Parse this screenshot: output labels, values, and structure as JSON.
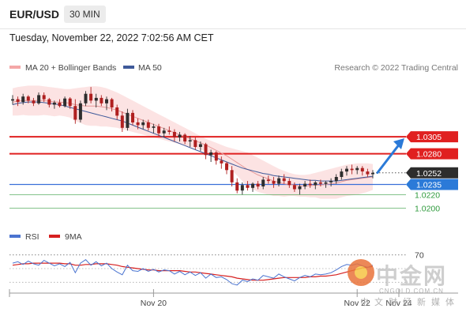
{
  "header": {
    "symbol": "EUR/USD",
    "timeframe": "30 MIN",
    "datetime": "Tuesday, November 22, 2022 7:02:56 AM CET"
  },
  "legend": {
    "bollinger_label": "MA 20 + Bollinger Bands",
    "ma50_label": "MA 50",
    "credit": "Research © 2022 Trading Central"
  },
  "colors": {
    "bollinger": "#f4a7a7",
    "ma50": "#3f5a9a",
    "resistance": "#e02020",
    "support": "#3a6fd8",
    "target": "#2b7ad8",
    "support_green": "#2e9a3c",
    "rsi": "#4b74d0",
    "rsi_ma": "#d62020",
    "candle_up": "#2e2e2e",
    "candle_down": "#b02020"
  },
  "levels": [
    {
      "value": 1.0305,
      "label": "1.0305",
      "style": "red-box",
      "line": "red"
    },
    {
      "value": 1.028,
      "label": "1.0280",
      "style": "red-box",
      "line": "red"
    },
    {
      "value": 1.0252,
      "label": "1.0252",
      "style": "dark-box",
      "line": "dotted"
    },
    {
      "value": 1.0235,
      "label": "1.0235",
      "style": "blue-box",
      "line": "blue"
    },
    {
      "value": 1.022,
      "label": "1.0220",
      "style": "green-text",
      "line": "green"
    },
    {
      "value": 1.02,
      "label": "1.0200",
      "style": "green-text",
      "line": "green"
    }
  ],
  "rsi_legend": {
    "rsi_label": "RSI",
    "ma_label": "9MA"
  },
  "rsi_levels": [
    {
      "value": 70,
      "label": "70"
    }
  ],
  "x_labels": [
    {
      "label": "Nov 20",
      "index": 27
    },
    {
      "label": "Nov 22",
      "index": 66
    },
    {
      "label": "Nov 24",
      "index": 74
    }
  ],
  "watermark": {
    "brand_cn": "中金网",
    "url": "CNGOLD.COM.CN",
    "slogan": "中文财经新媒体"
  },
  "chart_data": {
    "type": "candlestick",
    "title": "EUR/USD",
    "timeframe": "30 MIN",
    "ylim": [
      1.0188,
      1.0392
    ],
    "rsi_ylim": [
      20,
      80
    ],
    "series": [
      {
        "name": "Price",
        "ohlc": [
          [
            1.0358,
            1.0366,
            1.0352,
            1.036
          ],
          [
            1.036,
            1.0364,
            1.035,
            1.0356
          ],
          [
            1.0356,
            1.0368,
            1.0352,
            1.0364
          ],
          [
            1.0364,
            1.0366,
            1.0354,
            1.0358
          ],
          [
            1.0358,
            1.0362,
            1.035,
            1.0354
          ],
          [
            1.0354,
            1.037,
            1.0352,
            1.0366
          ],
          [
            1.0366,
            1.037,
            1.0356,
            1.036
          ],
          [
            1.036,
            1.0362,
            1.0348,
            1.0352
          ],
          [
            1.0352,
            1.0358,
            1.0346,
            1.0355
          ],
          [
            1.0355,
            1.036,
            1.0348,
            1.035
          ],
          [
            1.035,
            1.0364,
            1.0348,
            1.0361
          ],
          [
            1.0361,
            1.0363,
            1.0346,
            1.035
          ],
          [
            1.035,
            1.036,
            1.0324,
            1.033
          ],
          [
            1.033,
            1.0358,
            1.0326,
            1.0354
          ],
          [
            1.0354,
            1.0372,
            1.035,
            1.0368
          ],
          [
            1.0368,
            1.0378,
            1.0354,
            1.0358
          ],
          [
            1.0358,
            1.0368,
            1.0348,
            1.0362
          ],
          [
            1.0362,
            1.0366,
            1.035,
            1.0354
          ],
          [
            1.0354,
            1.0364,
            1.0344,
            1.036
          ],
          [
            1.036,
            1.0362,
            1.0342,
            1.0348
          ],
          [
            1.0348,
            1.0352,
            1.033,
            1.0336
          ],
          [
            1.0336,
            1.0342,
            1.0312,
            1.0318
          ],
          [
            1.0318,
            1.0346,
            1.0314,
            1.034
          ],
          [
            1.034,
            1.0344,
            1.0322,
            1.0326
          ],
          [
            1.0326,
            1.0332,
            1.0316,
            1.0322
          ],
          [
            1.0322,
            1.033,
            1.0316,
            1.0326
          ],
          [
            1.0326,
            1.033,
            1.0314,
            1.0318
          ],
          [
            1.0318,
            1.0324,
            1.031,
            1.032
          ],
          [
            1.032,
            1.0324,
            1.0306,
            1.031
          ],
          [
            1.031,
            1.0318,
            1.0304,
            1.0314
          ],
          [
            1.0314,
            1.032,
            1.0308,
            1.0312
          ],
          [
            1.0312,
            1.0316,
            1.0298,
            1.0304
          ],
          [
            1.0304,
            1.0312,
            1.0298,
            1.0308
          ],
          [
            1.0308,
            1.031,
            1.0294,
            1.0298
          ],
          [
            1.0298,
            1.0306,
            1.029,
            1.03
          ],
          [
            1.03,
            1.0304,
            1.0286,
            1.029
          ],
          [
            1.029,
            1.0298,
            1.0284,
            1.0294
          ],
          [
            1.0294,
            1.0296,
            1.0272,
            1.0278
          ],
          [
            1.0278,
            1.0286,
            1.0268,
            1.0282
          ],
          [
            1.0282,
            1.0284,
            1.0264,
            1.027
          ],
          [
            1.027,
            1.0276,
            1.0258,
            1.0266
          ],
          [
            1.0266,
            1.0268,
            1.025,
            1.0256
          ],
          [
            1.0256,
            1.0262,
            1.0232,
            1.0238
          ],
          [
            1.0238,
            1.0244,
            1.0222,
            1.0226
          ],
          [
            1.0226,
            1.0238,
            1.022,
            1.0234
          ],
          [
            1.0234,
            1.024,
            1.0226,
            1.023
          ],
          [
            1.023,
            1.0238,
            1.0224,
            1.0236
          ],
          [
            1.0236,
            1.024,
            1.0228,
            1.0232
          ],
          [
            1.0232,
            1.0246,
            1.0228,
            1.0242
          ],
          [
            1.0242,
            1.0248,
            1.0236,
            1.024
          ],
          [
            1.024,
            1.0246,
            1.023,
            1.0236
          ],
          [
            1.0236,
            1.0248,
            1.0232,
            1.0244
          ],
          [
            1.0244,
            1.025,
            1.0236,
            1.024
          ],
          [
            1.024,
            1.0244,
            1.023,
            1.0234
          ],
          [
            1.0234,
            1.0238,
            1.0224,
            1.0228
          ],
          [
            1.0228,
            1.0236,
            1.022,
            1.0232
          ],
          [
            1.0232,
            1.024,
            1.0228,
            1.0236
          ],
          [
            1.0236,
            1.0242,
            1.023,
            1.0234
          ],
          [
            1.0234,
            1.024,
            1.0228,
            1.0238
          ],
          [
            1.0238,
            1.0242,
            1.0232,
            1.0236
          ],
          [
            1.0236,
            1.024,
            1.023,
            1.0238
          ],
          [
            1.0238,
            1.0244,
            1.0232,
            1.024
          ],
          [
            1.024,
            1.025,
            1.0236,
            1.0246
          ],
          [
            1.0246,
            1.0258,
            1.0242,
            1.0254
          ],
          [
            1.0254,
            1.0262,
            1.0248,
            1.0258
          ],
          [
            1.0258,
            1.0264,
            1.025,
            1.0256
          ],
          [
            1.0256,
            1.0262,
            1.025,
            1.0259
          ],
          [
            1.0259,
            1.0262,
            1.0248,
            1.0254
          ],
          [
            1.0254,
            1.0258,
            1.0246,
            1.025
          ],
          [
            1.025,
            1.0256,
            1.0244,
            1.0252
          ]
        ]
      },
      {
        "name": "MA 50",
        "values": [
          1.0352,
          1.0354,
          1.0355,
          1.0356,
          1.0356,
          1.0356,
          1.0355,
          1.0354,
          1.0353,
          1.0352,
          1.035,
          1.0348,
          1.0346,
          1.0344,
          1.0342,
          1.034,
          1.0338,
          1.0336,
          1.0334,
          1.0332,
          1.033,
          1.0328,
          1.0325,
          1.0322,
          1.0319,
          1.0316,
          1.0313,
          1.031,
          1.0307,
          1.0304,
          1.0301,
          1.0298,
          1.0295,
          1.0292,
          1.0289,
          1.0286,
          1.0283,
          1.028,
          1.0277,
          1.0274,
          1.0271,
          1.0268,
          1.0265,
          1.0262,
          1.0259,
          1.0257,
          1.0255,
          1.0253,
          1.0251,
          1.025,
          1.0248,
          1.0247,
          1.0246,
          1.0245,
          1.0244,
          1.0243,
          1.0242,
          1.0241,
          1.0241,
          1.024,
          1.024,
          1.024,
          1.024,
          1.0241,
          1.0242,
          1.0243,
          1.0244,
          1.0245,
          1.0246,
          1.0247
        ]
      },
      {
        "name": "MA 20",
        "values": [
          1.0356,
          1.0357,
          1.0358,
          1.0358,
          1.0358,
          1.0358,
          1.0358,
          1.0357,
          1.0356,
          1.0356,
          1.0355,
          1.0354,
          1.0352,
          1.0351,
          1.035,
          1.035,
          1.035,
          1.0349,
          1.0348,
          1.0346,
          1.0344,
          1.0341,
          1.0338,
          1.0335,
          1.0332,
          1.0329,
          1.0326,
          1.0323,
          1.032,
          1.0317,
          1.0314,
          1.0311,
          1.0308,
          1.0305,
          1.0302,
          1.0299,
          1.0296,
          1.0293,
          1.0289,
          1.0285,
          1.0281,
          1.0277,
          1.0272,
          1.0267,
          1.0262,
          1.0257,
          1.0253,
          1.0249,
          1.0246,
          1.0243,
          1.024,
          1.0238,
          1.0236,
          1.0235,
          1.0234,
          1.0233,
          1.0233,
          1.0233,
          1.0234,
          1.0234,
          1.0235,
          1.0236,
          1.0237,
          1.0239,
          1.0241,
          1.0242,
          1.0243,
          1.0244,
          1.0245,
          1.0246
        ]
      },
      {
        "name": "Bollinger upper",
        "values": [
          1.0376,
          1.0378,
          1.0379,
          1.038,
          1.038,
          1.038,
          1.0379,
          1.0378,
          1.0377,
          1.0376,
          1.0375,
          1.0375,
          1.0376,
          1.0377,
          1.0378,
          1.0379,
          1.0379,
          1.0378,
          1.0376,
          1.0373,
          1.037,
          1.0366,
          1.0362,
          1.0358,
          1.0354,
          1.035,
          1.0346,
          1.0342,
          1.0338,
          1.0334,
          1.033,
          1.0326,
          1.0322,
          1.0318,
          1.0314,
          1.031,
          1.0306,
          1.0302,
          1.0299,
          1.0296,
          1.0293,
          1.029,
          1.0288,
          1.0286,
          1.0284,
          1.0282,
          1.0278,
          1.0274,
          1.027,
          1.0266,
          1.0262,
          1.0258,
          1.0255,
          1.0252,
          1.025,
          1.0249,
          1.0249,
          1.025,
          1.0252,
          1.0254,
          1.0256,
          1.0258,
          1.026,
          1.0262,
          1.0264,
          1.0265,
          1.0266,
          1.0266,
          1.0266,
          1.0265
        ]
      },
      {
        "name": "Bollinger lower",
        "values": [
          1.0336,
          1.0336,
          1.0337,
          1.0336,
          1.0336,
          1.0336,
          1.0337,
          1.0336,
          1.0335,
          1.0336,
          1.0335,
          1.0333,
          1.0328,
          1.0325,
          1.0322,
          1.0321,
          1.0321,
          1.032,
          1.032,
          1.0319,
          1.0318,
          1.0316,
          1.0314,
          1.0312,
          1.031,
          1.0308,
          1.0306,
          1.0304,
          1.0302,
          1.03,
          1.0298,
          1.0296,
          1.0294,
          1.0292,
          1.029,
          1.0288,
          1.0286,
          1.0284,
          1.0279,
          1.0274,
          1.0269,
          1.0264,
          1.0256,
          1.0248,
          1.024,
          1.0232,
          1.0228,
          1.0224,
          1.0222,
          1.022,
          1.0218,
          1.0218,
          1.0217,
          1.0218,
          1.0218,
          1.0217,
          1.0217,
          1.0216,
          1.0216,
          1.0214,
          1.0214,
          1.0214,
          1.0214,
          1.0216,
          1.0218,
          1.0219,
          1.022,
          1.0222,
          1.0224,
          1.0227
        ]
      },
      {
        "name": "RSI",
        "values": [
          58,
          60,
          56,
          61,
          57,
          55,
          62,
          58,
          54,
          57,
          53,
          59,
          44,
          58,
          63,
          55,
          60,
          54,
          58,
          50,
          45,
          41,
          55,
          47,
          46,
          50,
          46,
          49,
          45,
          48,
          47,
          42,
          46,
          41,
          45,
          40,
          44,
          36,
          42,
          37,
          38,
          34,
          28,
          26,
          33,
          31,
          35,
          33,
          40,
          38,
          36,
          42,
          38,
          35,
          32,
          37,
          40,
          38,
          42,
          41,
          42,
          44,
          48,
          53,
          56,
          55,
          57,
          54,
          52,
          55
        ]
      },
      {
        "name": "9MA",
        "values": [
          55,
          56,
          57,
          57,
          58,
          58,
          58,
          58,
          58,
          58,
          57,
          57,
          55,
          55,
          56,
          56,
          57,
          57,
          57,
          56,
          55,
          53,
          52,
          51,
          50,
          49,
          48,
          48,
          47,
          47,
          47,
          47,
          47,
          46,
          45,
          45,
          44,
          43,
          42,
          41,
          40,
          39,
          38,
          36,
          35,
          34,
          33,
          33,
          33,
          34,
          35,
          36,
          37,
          37,
          37,
          37,
          37,
          38,
          38,
          39,
          39,
          40,
          41,
          43,
          45,
          47,
          49,
          51,
          52,
          53
        ]
      }
    ],
    "target": {
      "from_index": 69,
      "from_value": 1.025,
      "to_value": 1.0305
    }
  }
}
